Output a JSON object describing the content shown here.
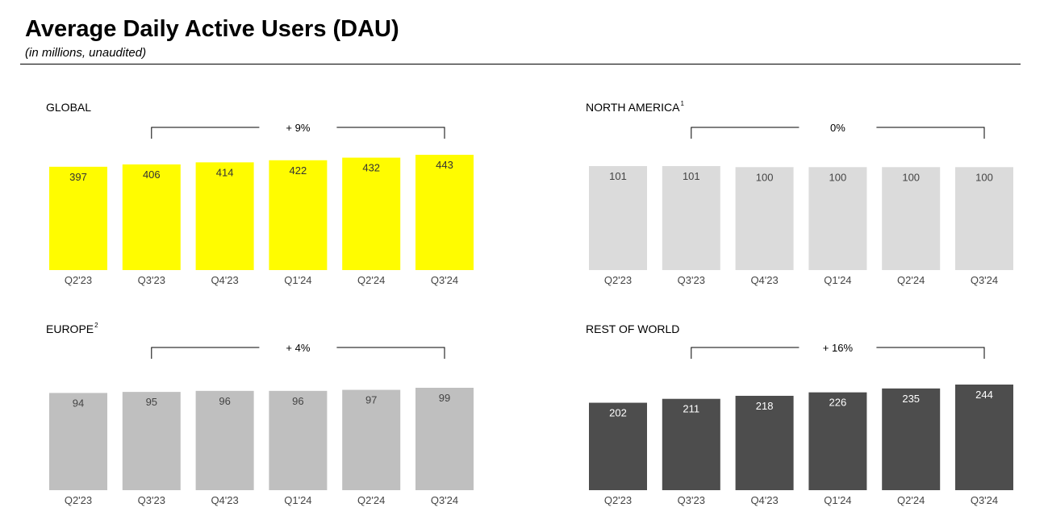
{
  "header": {
    "title": "Average Daily Active Users (DAU)",
    "subtitle": "(in millions, unaudited)"
  },
  "chart_data": [
    {
      "type": "bar",
      "title": "GLOBAL",
      "title_superscript": "",
      "categories": [
        "Q2'23",
        "Q3'23",
        "Q4'23",
        "Q1'24",
        "Q2'24",
        "Q3'24"
      ],
      "values": [
        397,
        406,
        414,
        422,
        432,
        443
      ],
      "bar_color": "#FFFC00",
      "label_color": "#333333",
      "growth_label": "+ 9%",
      "growth_from": "Q3'23",
      "growth_to": "Q3'24"
    },
    {
      "type": "bar",
      "title": "NORTH AMERICA",
      "title_superscript": "1",
      "categories": [
        "Q2'23",
        "Q3'23",
        "Q4'23",
        "Q1'24",
        "Q2'24",
        "Q3'24"
      ],
      "values": [
        101,
        101,
        100,
        100,
        100,
        100
      ],
      "bar_color": "#DBDBDB",
      "label_color": "#444444",
      "growth_label": "0%",
      "growth_from": "Q3'23",
      "growth_to": "Q3'24"
    },
    {
      "type": "bar",
      "title": "EUROPE",
      "title_superscript": "2",
      "categories": [
        "Q2'23",
        "Q3'23",
        "Q4'23",
        "Q1'24",
        "Q2'24",
        "Q3'24"
      ],
      "values": [
        94,
        95,
        96,
        96,
        97,
        99
      ],
      "bar_color": "#BFBFBF",
      "label_color": "#444444",
      "growth_label": "+ 4%",
      "growth_from": "Q3'23",
      "growth_to": "Q3'24"
    },
    {
      "type": "bar",
      "title": "REST OF WORLD",
      "title_superscript": "",
      "categories": [
        "Q2'23",
        "Q3'23",
        "Q4'23",
        "Q1'24",
        "Q2'24",
        "Q3'24"
      ],
      "values": [
        202,
        211,
        218,
        226,
        235,
        244
      ],
      "bar_color": "#4D4D4D",
      "label_color": "#FFFFFF",
      "growth_label": "+ 16%",
      "growth_from": "Q3'23",
      "growth_to": "Q3'24"
    }
  ]
}
